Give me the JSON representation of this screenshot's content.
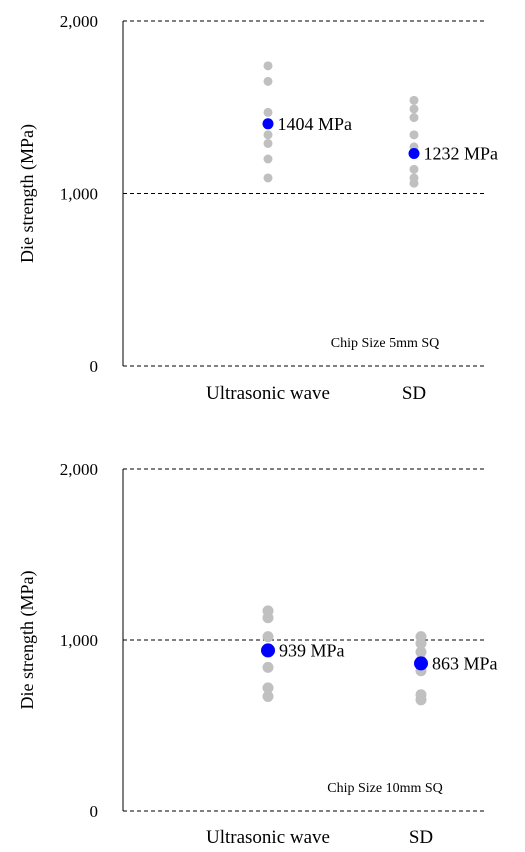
{
  "chart_data": [
    {
      "type": "scatter",
      "title": "",
      "ylabel": "Die strength (MPa)",
      "xlabel": "",
      "ylim": [
        0,
        2000
      ],
      "yticks": [
        0,
        1000,
        2000
      ],
      "ytick_labels": [
        "0",
        "1,000",
        "2,000"
      ],
      "grid": "horizontal dashed",
      "categories": [
        "Ultrasonic wave",
        "SD"
      ],
      "annotation": "Chip Size 5mm SQ",
      "series": [
        {
          "values": [
            [
              1740,
              1650,
              1470,
              1410,
              1340,
              1290,
              1200,
              1090
            ],
            [
              1540,
              1490,
              1440,
              1340,
              1270,
              1140,
              1090,
              1060
            ]
          ],
          "color": "#c0c0c0"
        },
        {
          "values": [
            1404,
            1232
          ],
          "labels": [
            "1404 MPa",
            "1232 MPa"
          ],
          "color": "#0000ff"
        }
      ]
    },
    {
      "type": "scatter",
      "title": "",
      "ylabel": "Die strength (MPa)",
      "xlabel": "",
      "ylim": [
        0,
        2000
      ],
      "yticks": [
        0,
        1000,
        2000
      ],
      "ytick_labels": [
        "0",
        "1,000",
        "2,000"
      ],
      "grid": "horizontal dashed",
      "categories": [
        "Ultrasonic wave",
        "SD"
      ],
      "annotation": "Chip Size 10mm SQ",
      "series": [
        {
          "values": [
            [
              1170,
              1130,
              1020,
              930,
              840,
              720,
              670
            ],
            [
              1020,
              980,
              930,
              880,
              820,
              680,
              650
            ]
          ],
          "color": "#c0c0c0"
        },
        {
          "values": [
            939,
            863
          ],
          "labels": [
            "939 MPa",
            "863 MPa"
          ],
          "color": "#0000ff"
        }
      ]
    }
  ]
}
